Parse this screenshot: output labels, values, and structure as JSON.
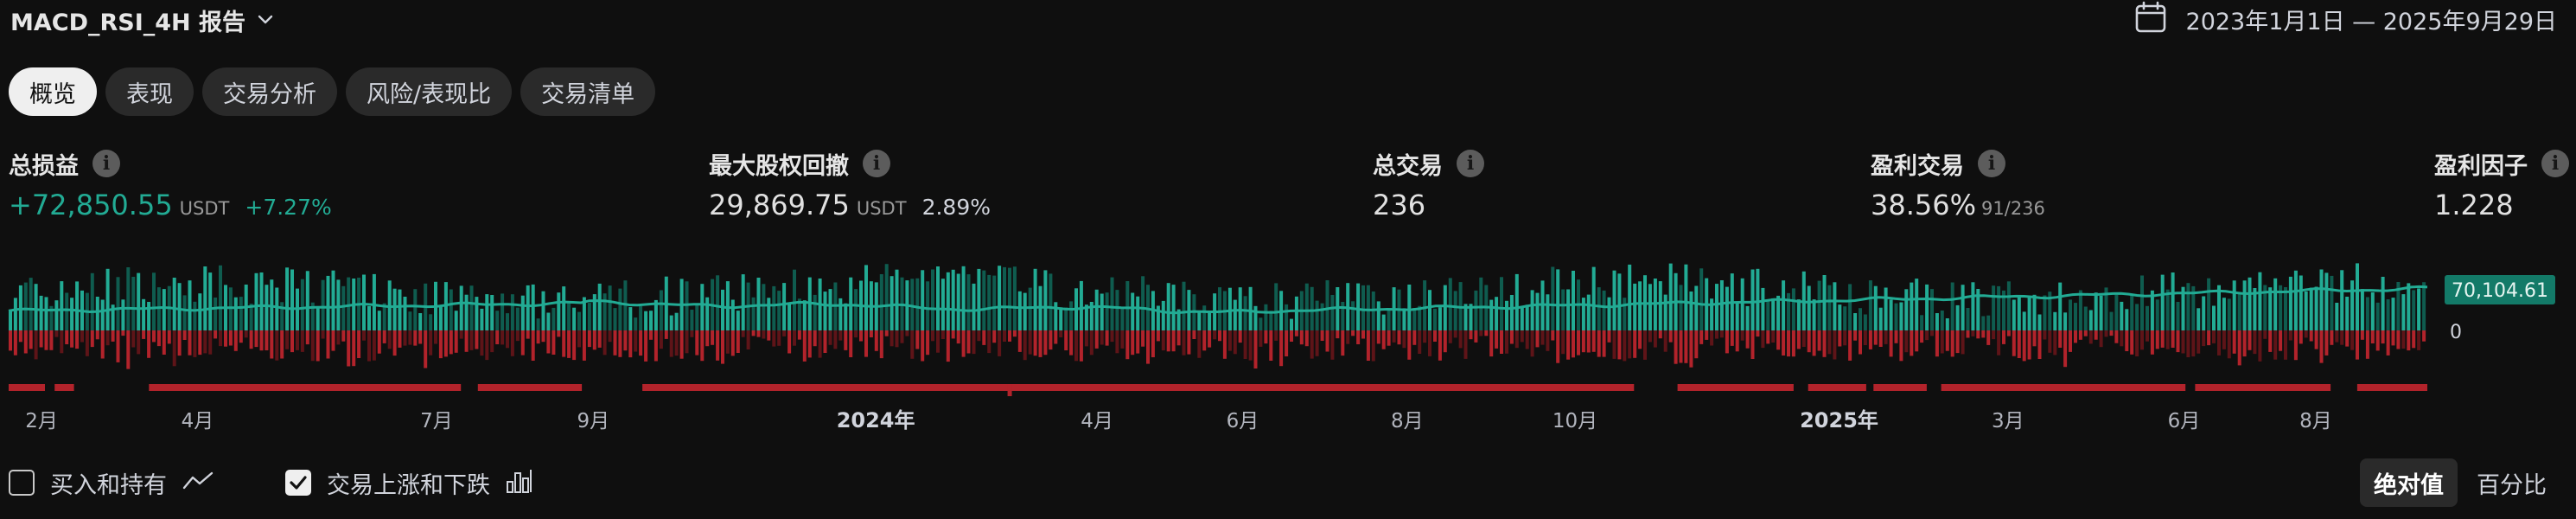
{
  "header": {
    "title": "MACD_RSI_4H 报告",
    "date_range": "2023年1月1日 — 2025年9月29日"
  },
  "tabs": [
    {
      "label": "概览",
      "active": true
    },
    {
      "label": "表现",
      "active": false
    },
    {
      "label": "交易分析",
      "active": false
    },
    {
      "label": "风险/表现比",
      "active": false
    },
    {
      "label": "交易清单",
      "active": false
    }
  ],
  "stats": {
    "net_profit": {
      "label": "总损益",
      "value": "+72,850.55",
      "unit": "USDT",
      "pct": "+7.27%"
    },
    "max_drawdown": {
      "label": "最大股权回撤",
      "value": "29,869.75",
      "unit": "USDT",
      "pct": "2.89%"
    },
    "total_trades": {
      "label": "总交易",
      "value": "236"
    },
    "win_trades": {
      "label": "盈利交易",
      "value": "38.56%",
      "ratio": "91/236"
    },
    "profit_factor": {
      "label": "盈利因子",
      "value": "1.228"
    }
  },
  "chart_data": {
    "type": "bar",
    "x_axis": {
      "labels": [
        "2月",
        "4月",
        "7月",
        "9月",
        "2024年",
        "4月",
        "6月",
        "8月",
        "10月",
        "2025年",
        "3月",
        "6月",
        "8月"
      ],
      "label_positions": [
        0.0136,
        0.0781,
        0.1769,
        0.2417,
        0.3585,
        0.45,
        0.5102,
        0.5782,
        0.6476,
        0.7568,
        0.8266,
        0.8994,
        0.9539
      ],
      "year_labels": [
        "2024年",
        "2025年"
      ]
    },
    "y_axis": {
      "last_value_label": "70,104.61",
      "zero_label": "0"
    },
    "series": [
      {
        "type": "line",
        "color": "#22ab94",
        "last_value": 70104.61
      },
      {
        "type": "bar",
        "color": "#22ab94"
      },
      {
        "type": "bar",
        "color": "#b2232b"
      }
    ],
    "drawdown_segments": [
      [
        0.0,
        0.015
      ],
      [
        0.019,
        0.027
      ],
      [
        0.058,
        0.187
      ],
      [
        0.194,
        0.237
      ],
      [
        0.262,
        0.672
      ],
      [
        0.69,
        0.738
      ],
      [
        0.744,
        0.768
      ],
      [
        0.771,
        0.793
      ],
      [
        0.799,
        0.9
      ],
      [
        0.904,
        0.96
      ],
      [
        0.971,
        1.0
      ]
    ],
    "n_trades": 236,
    "colors": {
      "gain": "#22ab94",
      "loss": "#b2232b",
      "line": "#22ab94"
    }
  },
  "controls": {
    "buy_hold": {
      "label": "买入和持有",
      "checked": false
    },
    "trade_run": {
      "label": "交易上涨和下跌",
      "checked": true
    },
    "mode_absolute": "绝对值",
    "mode_percent": "百分比"
  }
}
